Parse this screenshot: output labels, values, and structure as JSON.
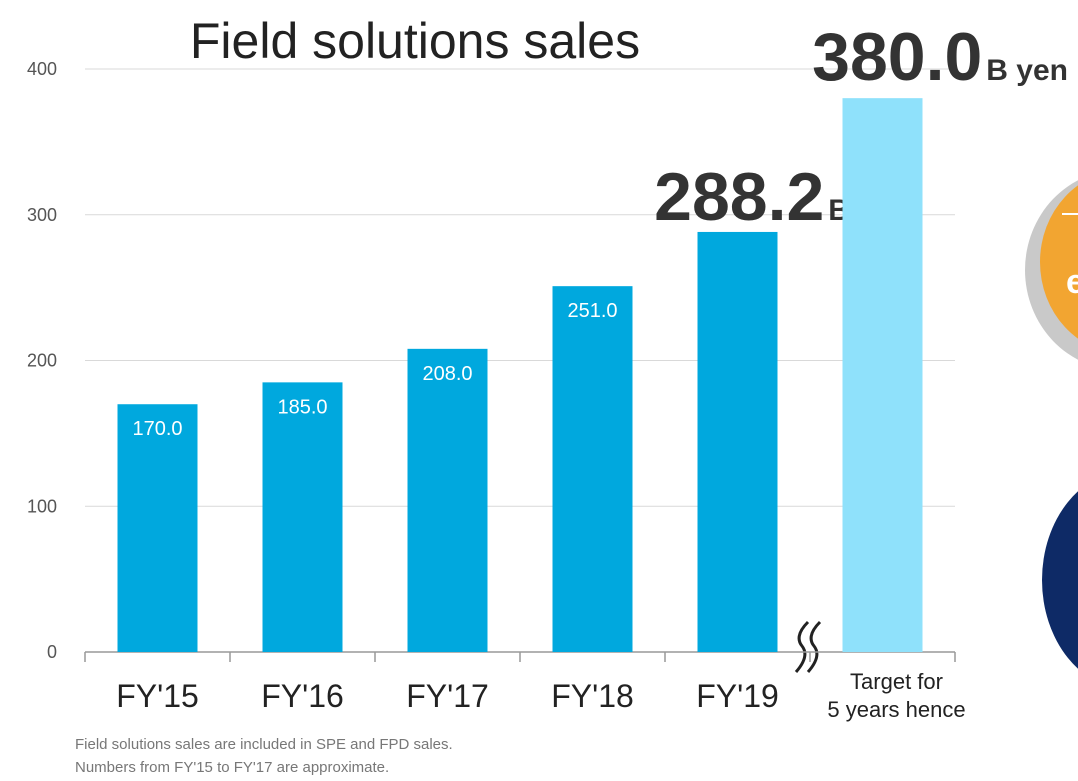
{
  "chart_data": {
    "type": "bar",
    "title": "Field solutions sales",
    "categories": [
      "FY'15",
      "FY'16",
      "FY'17",
      "FY'18",
      "FY'19",
      "Target for\n5 years hence"
    ],
    "values": [
      170,
      185,
      208,
      251,
      288.2,
      380
    ],
    "value_labels": [
      "170.0",
      "185.0",
      "208.0",
      "251.0",
      "288.2",
      "380.0"
    ],
    "unit": "B yen",
    "colors": [
      "#00a8de",
      "#00a8de",
      "#00a8de",
      "#00a8de",
      "#00a8de",
      "#8fe1fb"
    ],
    "ylim": [
      0,
      400
    ],
    "yticks": [
      0,
      100,
      200,
      300,
      400
    ],
    "grid": true,
    "notes": [
      "Field solutions sales are included in SPE and FPD sales.",
      "Numbers from FY'15 to FY'17 are approximate."
    ]
  }
}
